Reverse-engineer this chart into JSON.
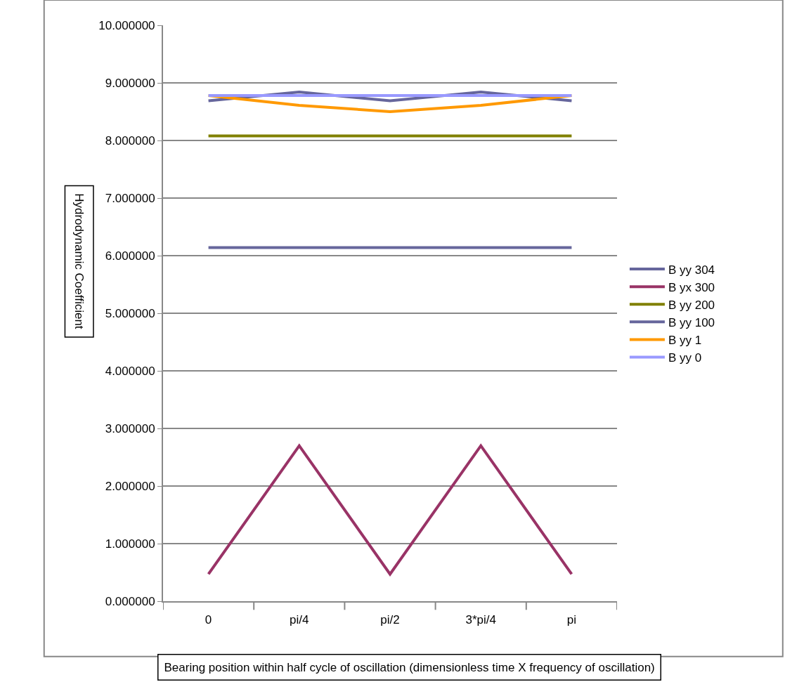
{
  "chart_data": {
    "type": "line",
    "xlabel": "Bearing position within half cycle of oscillation (dimensionless time X frequency of oscillation)",
    "ylabel": "Hydrodynamic Coefficient",
    "categories": [
      "0",
      "pi/4",
      "pi/2",
      "3*pi/4",
      "pi"
    ],
    "series": [
      {
        "name": "B yy 304",
        "color": "#66669c",
        "values": [
          8.69,
          8.84,
          8.69,
          8.84,
          8.69
        ]
      },
      {
        "name": "B yx 300",
        "color": "#993366",
        "values": [
          0.47,
          2.7,
          0.47,
          2.7,
          0.47
        ]
      },
      {
        "name": "B yy 200",
        "color": "#808000",
        "values": [
          8.08,
          8.08,
          8.08,
          8.08,
          8.08
        ]
      },
      {
        "name": "B yy 100",
        "color": "#66669c",
        "values": [
          6.14,
          6.14,
          6.14,
          6.14,
          6.14
        ]
      },
      {
        "name": "B yy 1",
        "color": "#ff9900",
        "values": [
          8.78,
          8.61,
          8.5,
          8.61,
          8.78
        ]
      },
      {
        "name": "B yy 0",
        "color": "#9999ff",
        "values": [
          8.78,
          8.78,
          8.78,
          8.78,
          8.78
        ]
      }
    ],
    "ylim": [
      0,
      10
    ],
    "yticks": [
      {
        "value": 0,
        "label": "0.000000"
      },
      {
        "value": 1,
        "label": "1.000000"
      },
      {
        "value": 2,
        "label": "2.000000"
      },
      {
        "value": 3,
        "label": "3.000000"
      },
      {
        "value": 4,
        "label": "4.000000"
      },
      {
        "value": 5,
        "label": "5.000000"
      },
      {
        "value": 6,
        "label": "6.000000"
      },
      {
        "value": 7,
        "label": "7.000000"
      },
      {
        "value": 8,
        "label": "8.000000"
      },
      {
        "value": 9,
        "label": "9.000000"
      },
      {
        "value": 10,
        "label": "10.000000"
      }
    ],
    "grid": "y",
    "legend": "right",
    "marker": "none",
    "line_style": "solid"
  }
}
